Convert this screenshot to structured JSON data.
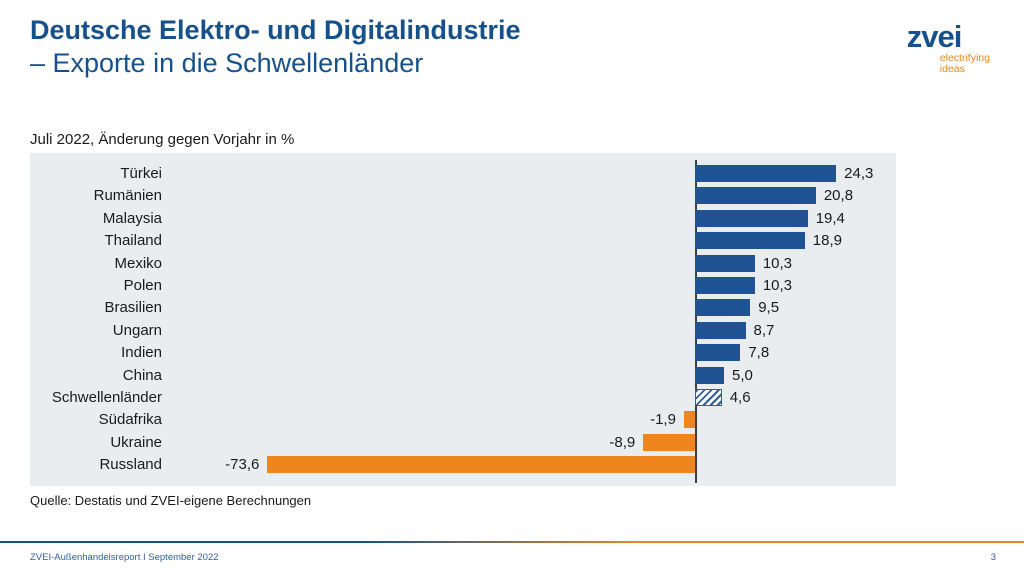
{
  "header": {
    "title_line1": "Deutsche Elektro- und Digitalindustrie",
    "title_line2": "– Exporte in die Schwellenländer"
  },
  "logo": {
    "wordmark": "zvei",
    "tagline_line1": "electrifying",
    "tagline_line2": "ideas"
  },
  "chart_data": {
    "type": "bar",
    "orientation": "horizontal",
    "title": "Juli 2022, Änderung gegen Vorjahr in %",
    "unit": "percent change vs previous year",
    "categories": [
      "Türkei",
      "Rumänien",
      "Malaysia",
      "Thailand",
      "Mexiko",
      "Polen",
      "Brasilien",
      "Ungarn",
      "Indien",
      "China",
      "Schwellenländer",
      "Südafrika",
      "Ukraine",
      "Russland"
    ],
    "values": [
      24.3,
      20.8,
      19.4,
      18.9,
      10.3,
      10.3,
      9.5,
      8.7,
      7.8,
      5.0,
      4.6,
      -1.9,
      -8.9,
      -73.6
    ],
    "value_labels": [
      "24,3",
      "20,8",
      "19,4",
      "18,9",
      "10,3",
      "10,3",
      "9,5",
      "8,7",
      "7,8",
      "5,0",
      "4,6",
      "-1,9",
      "-8,9",
      "-73,6"
    ],
    "hatched_categories": [
      "Schwellenländer"
    ],
    "xlim": [
      -91,
      35
    ],
    "grid": false,
    "legend": null,
    "colors": {
      "positive": "#1F5394",
      "negative": "#EF861D",
      "hatched_stripe": "#2E5E9C",
      "panel_background": "#E9EDEF",
      "axis": "#3F3F3F",
      "title_blue": "#17518C",
      "accent_orange": "#EF861D"
    }
  },
  "source": "Quelle: Destatis und ZVEI-eigene Berechnungen",
  "footer": {
    "report_label": "ZVEI-Außenhandelsreport I September 2022",
    "page_number": "3"
  }
}
